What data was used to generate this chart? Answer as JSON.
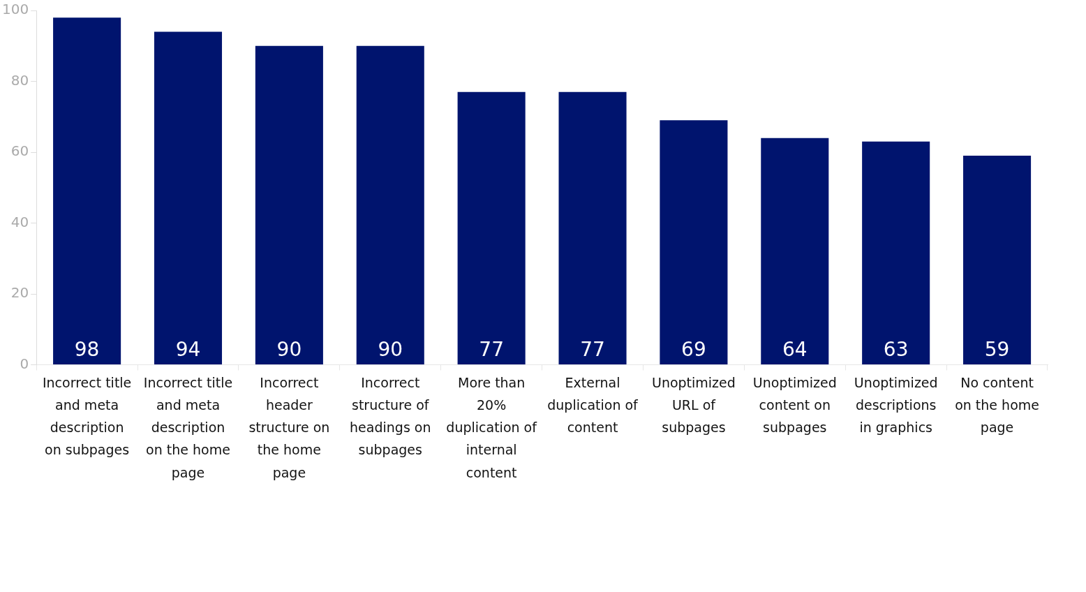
{
  "chart_data": {
    "type": "bar",
    "categories": [
      "Incorrect title and meta description on subpages",
      "Incorrect title and meta description on the home page",
      "Incorrect header structure on the home page",
      "Incorrect structure of headings on subpages",
      "More than 20% duplication of internal content",
      "External duplication of content",
      "Unoptimized URL of subpages",
      "Unoptimized content on subpages",
      "Unoptimized descriptions in graphics",
      "No content on the home page"
    ],
    "values": [
      98,
      94,
      90,
      90,
      77,
      77,
      69,
      64,
      63,
      59
    ],
    "color": "#00146e",
    "ylim": [
      0,
      100
    ],
    "yticks": [
      0,
      20,
      40,
      60,
      80,
      100
    ],
    "data_labels": true,
    "grid": false,
    "legend": false
  }
}
